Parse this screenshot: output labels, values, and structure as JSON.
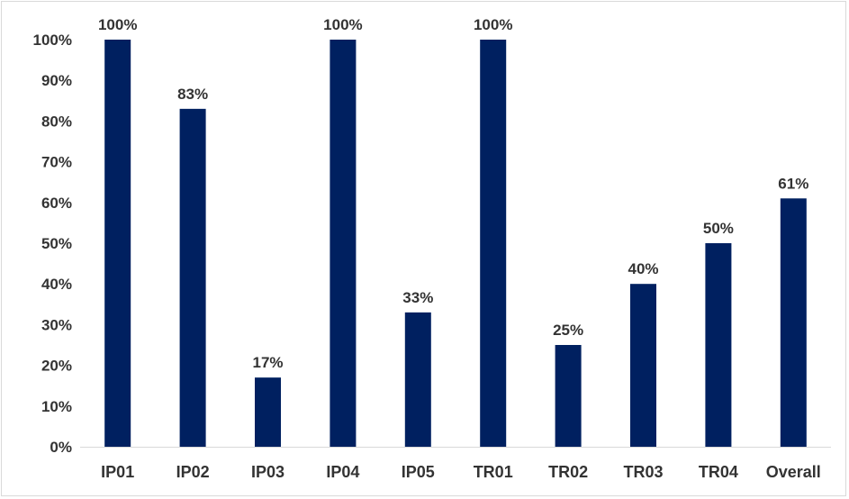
{
  "chart_data": {
    "type": "bar",
    "title": "",
    "xlabel": "",
    "ylabel": "",
    "categories": [
      "IP01",
      "IP02",
      "IP03",
      "IP04",
      "IP05",
      "TR01",
      "TR02",
      "TR03",
      "TR04",
      "Overall"
    ],
    "values": [
      100,
      83,
      17,
      100,
      33,
      100,
      25,
      40,
      50,
      61
    ],
    "value_labels": [
      "100%",
      "83%",
      "17%",
      "100%",
      "33%",
      "100%",
      "25%",
      "40%",
      "50%",
      "61%"
    ],
    "ylim": [
      0,
      100
    ],
    "yticks": [
      0,
      10,
      20,
      30,
      40,
      50,
      60,
      70,
      80,
      90,
      100
    ],
    "ytick_labels": [
      "0%",
      "10%",
      "20%",
      "30%",
      "40%",
      "50%",
      "60%",
      "70%",
      "80%",
      "90%",
      "100%"
    ],
    "grid": false,
    "legend": "none",
    "bar_color": "#002060"
  }
}
